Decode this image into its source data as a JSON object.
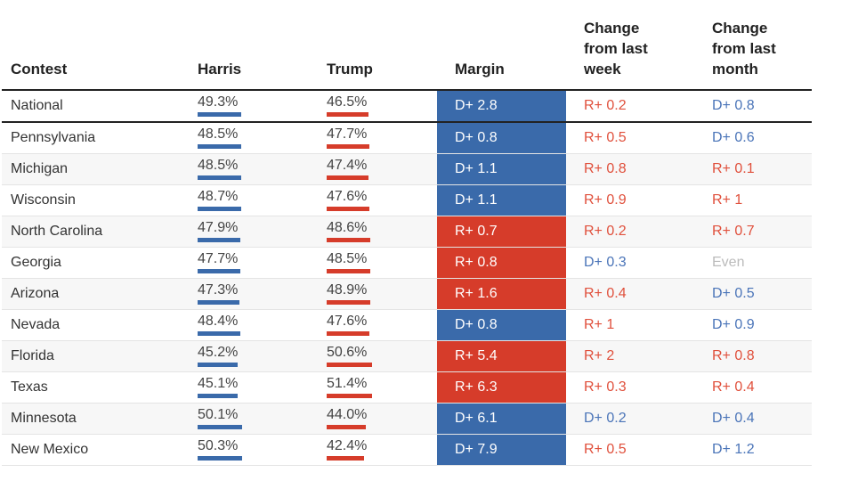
{
  "colors": {
    "harris_blue": "#3a6aaa",
    "trump_red": "#d63c2a",
    "dem_text": "#4a74b8",
    "rep_text": "#e0503c",
    "even_text": "#bbbbbb"
  },
  "header": {
    "contest": "Contest",
    "harris": "Harris",
    "trump": "Trump",
    "margin": "Margin",
    "change_week": "Change\nfrom last\nweek",
    "change_month": "Change\nfrom last\nmonth"
  },
  "chart_data": {
    "type": "table",
    "columns": [
      "Contest",
      "Harris",
      "Trump",
      "Margin",
      "Change from last week",
      "Change from last month"
    ],
    "rows": [
      {
        "contest": "National",
        "harris": 49.3,
        "harris_label": "49.3%",
        "trump": 46.5,
        "trump_label": "46.5%",
        "margin_party": "D",
        "margin_label": "D+ 2.8",
        "week_party": "R",
        "week_label": "R+ 0.2",
        "month_party": "D",
        "month_label": "D+ 0.8"
      },
      {
        "contest": "Pennsylvania",
        "harris": 48.5,
        "harris_label": "48.5%",
        "trump": 47.7,
        "trump_label": "47.7%",
        "margin_party": "D",
        "margin_label": "D+ 0.8",
        "week_party": "R",
        "week_label": "R+ 0.5",
        "month_party": "D",
        "month_label": "D+ 0.6"
      },
      {
        "contest": "Michigan",
        "harris": 48.5,
        "harris_label": "48.5%",
        "trump": 47.4,
        "trump_label": "47.4%",
        "margin_party": "D",
        "margin_label": "D+ 1.1",
        "week_party": "R",
        "week_label": "R+ 0.8",
        "month_party": "R",
        "month_label": "R+ 0.1"
      },
      {
        "contest": "Wisconsin",
        "harris": 48.7,
        "harris_label": "48.7%",
        "trump": 47.6,
        "trump_label": "47.6%",
        "margin_party": "D",
        "margin_label": "D+ 1.1",
        "week_party": "R",
        "week_label": "R+ 0.9",
        "month_party": "R",
        "month_label": "R+ 1"
      },
      {
        "contest": "North Carolina",
        "harris": 47.9,
        "harris_label": "47.9%",
        "trump": 48.6,
        "trump_label": "48.6%",
        "margin_party": "R",
        "margin_label": "R+ 0.7",
        "week_party": "R",
        "week_label": "R+ 0.2",
        "month_party": "R",
        "month_label": "R+ 0.7"
      },
      {
        "contest": "Georgia",
        "harris": 47.7,
        "harris_label": "47.7%",
        "trump": 48.5,
        "trump_label": "48.5%",
        "margin_party": "R",
        "margin_label": "R+ 0.8",
        "week_party": "D",
        "week_label": "D+ 0.3",
        "month_party": "E",
        "month_label": "Even"
      },
      {
        "contest": "Arizona",
        "harris": 47.3,
        "harris_label": "47.3%",
        "trump": 48.9,
        "trump_label": "48.9%",
        "margin_party": "R",
        "margin_label": "R+ 1.6",
        "week_party": "R",
        "week_label": "R+ 0.4",
        "month_party": "D",
        "month_label": "D+ 0.5"
      },
      {
        "contest": "Nevada",
        "harris": 48.4,
        "harris_label": "48.4%",
        "trump": 47.6,
        "trump_label": "47.6%",
        "margin_party": "D",
        "margin_label": "D+ 0.8",
        "week_party": "R",
        "week_label": "R+ 1",
        "month_party": "D",
        "month_label": "D+ 0.9"
      },
      {
        "contest": "Florida",
        "harris": 45.2,
        "harris_label": "45.2%",
        "trump": 50.6,
        "trump_label": "50.6%",
        "margin_party": "R",
        "margin_label": "R+ 5.4",
        "week_party": "R",
        "week_label": "R+ 2",
        "month_party": "R",
        "month_label": "R+ 0.8"
      },
      {
        "contest": "Texas",
        "harris": 45.1,
        "harris_label": "45.1%",
        "trump": 51.4,
        "trump_label": "51.4%",
        "margin_party": "R",
        "margin_label": "R+ 6.3",
        "week_party": "R",
        "week_label": "R+ 0.3",
        "month_party": "R",
        "month_label": "R+ 0.4"
      },
      {
        "contest": "Minnesota",
        "harris": 50.1,
        "harris_label": "50.1%",
        "trump": 44.0,
        "trump_label": "44.0%",
        "margin_party": "D",
        "margin_label": "D+ 6.1",
        "week_party": "D",
        "week_label": "D+ 0.2",
        "month_party": "D",
        "month_label": "D+ 0.4"
      },
      {
        "contest": "New Mexico",
        "harris": 50.3,
        "harris_label": "50.3%",
        "trump": 42.4,
        "trump_label": "42.4%",
        "margin_party": "D",
        "margin_label": "D+ 7.9",
        "week_party": "R",
        "week_label": "R+ 0.5",
        "month_party": "D",
        "month_label": "D+ 1.2"
      }
    ]
  }
}
